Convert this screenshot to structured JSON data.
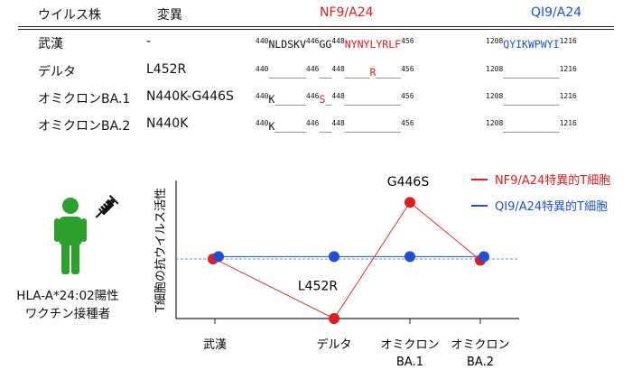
{
  "table": {
    "headers": [
      "ウイルス株",
      "変異",
      "NF9/A24",
      "QI9/A24"
    ],
    "rows": [
      {
        "strain": "武漢",
        "mutation": "-",
        "nf9": [
          {
            "t": "440",
            "sup": true,
            "c": "k"
          },
          {
            "t": "NLDSKV",
            "c": "k"
          },
          {
            "t": "446",
            "sup": true,
            "c": "k"
          },
          {
            "t": "GG",
            "c": "k"
          },
          {
            "t": "448",
            "sup": true,
            "c": "k"
          },
          {
            "t": "NYNYLYRLF",
            "c": "r"
          },
          {
            "t": "456",
            "sup": true,
            "c": "k"
          }
        ],
        "qi9": [
          {
            "t": "1208",
            "sup": true,
            "c": "k"
          },
          {
            "t": "QYIKWPWYI",
            "c": "b"
          },
          {
            "t": "1216",
            "sup": true,
            "c": "k"
          }
        ]
      },
      {
        "strain": "デルタ",
        "mutation": "L452R",
        "nf9": [
          {
            "t": "440",
            "sup": true,
            "c": "k"
          },
          {
            "t": "______",
            "c": "k"
          },
          {
            "t": "446",
            "sup": true,
            "c": "k"
          },
          {
            "t": "__",
            "c": "k"
          },
          {
            "t": "448",
            "sup": true,
            "c": "k"
          },
          {
            "t": "____",
            "c": "k"
          },
          {
            "t": "R",
            "c": "r"
          },
          {
            "t": "____",
            "c": "k"
          },
          {
            "t": "456",
            "sup": true,
            "c": "k"
          }
        ],
        "qi9": [
          {
            "t": "1208",
            "sup": true,
            "c": "k"
          },
          {
            "t": "_________",
            "c": "k"
          },
          {
            "t": "1216",
            "sup": true,
            "c": "k"
          }
        ]
      },
      {
        "strain": "オミクロンBA.1",
        "mutation": "N440K-G446S",
        "nf9": [
          {
            "t": "440",
            "sup": true,
            "c": "k"
          },
          {
            "t": "K_____",
            "c": "k"
          },
          {
            "t": "446",
            "sup": true,
            "c": "k"
          },
          {
            "t": "S",
            "c": "r"
          },
          {
            "t": "_",
            "c": "k"
          },
          {
            "t": "448",
            "sup": true,
            "c": "k"
          },
          {
            "t": "_________",
            "c": "k"
          },
          {
            "t": "456",
            "sup": true,
            "c": "k"
          }
        ],
        "qi9": [
          {
            "t": "1208",
            "sup": true,
            "c": "k"
          },
          {
            "t": "_________",
            "c": "k"
          },
          {
            "t": "1216",
            "sup": true,
            "c": "k"
          }
        ]
      },
      {
        "strain": "オミクロンBA.2",
        "mutation": "N440K",
        "nf9": [
          {
            "t": "440",
            "sup": true,
            "c": "k"
          },
          {
            "t": "K_____",
            "c": "k"
          },
          {
            "t": "446",
            "sup": true,
            "c": "k"
          },
          {
            "t": "__",
            "c": "k"
          },
          {
            "t": "448",
            "sup": true,
            "c": "k"
          },
          {
            "t": "_________",
            "c": "k"
          },
          {
            "t": "456",
            "sup": true,
            "c": "k"
          }
        ],
        "qi9": [
          {
            "t": "1208",
            "sup": true,
            "c": "k"
          },
          {
            "t": "_________",
            "c": "k"
          },
          {
            "t": "1216",
            "sup": true,
            "c": "k"
          }
        ]
      }
    ]
  },
  "person": {
    "caption_line1": "HLA-A*24:02陽性",
    "caption_line2": "ワクチン接種者",
    "figure_icon": "person-icon",
    "syringe_icon": "syringe-icon"
  },
  "colors": {
    "red": "#e41a1c",
    "blue": "#1f4fd8",
    "green": "#2ca02c",
    "black": "#111111"
  },
  "chart": {
    "ylabel": "T細胞の抗ウイルス活性",
    "categories": [
      "武漢",
      "デルタ",
      "オミクロン\nBA.1",
      "オミクロン\nBA.2"
    ],
    "baseline": 1.0,
    "ylim": [
      0,
      2.0
    ],
    "legend_position": "top-right",
    "series": [
      {
        "name": "NF9/A24特異的T細胞",
        "color": "#e41a1c",
        "values": [
          1.0,
          0.0,
          1.95,
          0.98
        ]
      },
      {
        "name": "QI9/A24特異的T細胞",
        "color": "#1f4fd8",
        "values": [
          1.04,
          1.04,
          1.04,
          1.04
        ]
      }
    ],
    "annotations": [
      {
        "text": "L452R",
        "category": 1,
        "value": 0.55
      },
      {
        "text": "G446S",
        "category": 2,
        "value": 2.3
      }
    ]
  }
}
